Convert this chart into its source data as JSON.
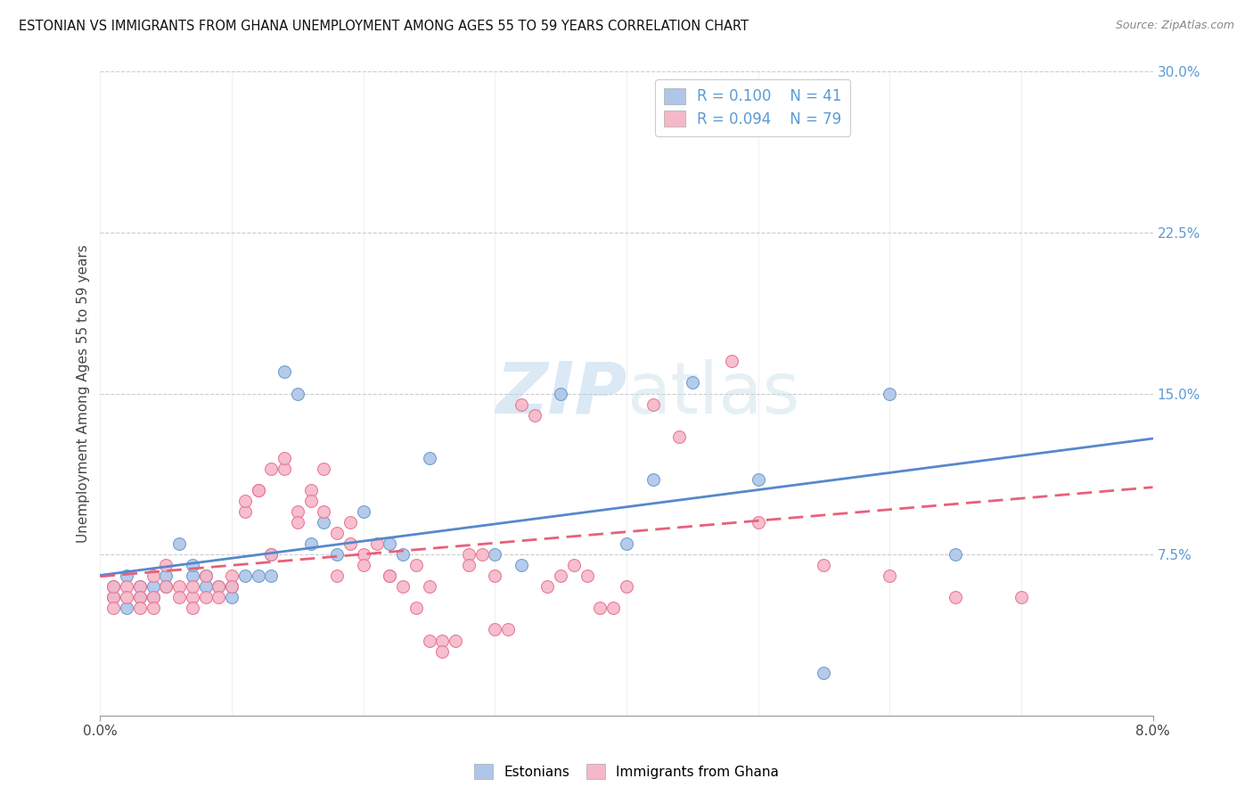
{
  "title": "ESTONIAN VS IMMIGRANTS FROM GHANA UNEMPLOYMENT AMONG AGES 55 TO 59 YEARS CORRELATION CHART",
  "source": "Source: ZipAtlas.com",
  "ylabel": "Unemployment Among Ages 55 to 59 years",
  "legend_label1": "Estonians",
  "legend_label2": "Immigrants from Ghana",
  "R1": 0.1,
  "N1": 41,
  "R2": 0.094,
  "N2": 79,
  "color1": "#aec6e8",
  "color2": "#f5b8c8",
  "edge_color1": "#6699cc",
  "edge_color2": "#e87090",
  "line_color1": "#5588cc",
  "line_color2": "#e8607a",
  "background_color": "#ffffff",
  "tick_color": "#5b9bd5",
  "watermark_color": "#c8dff0",
  "estonians_x": [
    0.001,
    0.001,
    0.002,
    0.002,
    0.003,
    0.003,
    0.004,
    0.004,
    0.005,
    0.005,
    0.006,
    0.007,
    0.007,
    0.008,
    0.008,
    0.009,
    0.01,
    0.01,
    0.011,
    0.012,
    0.013,
    0.013,
    0.014,
    0.015,
    0.016,
    0.017,
    0.018,
    0.02,
    0.022,
    0.023,
    0.025,
    0.03,
    0.032,
    0.035,
    0.04,
    0.042,
    0.045,
    0.05,
    0.055,
    0.06,
    0.065
  ],
  "estonians_y": [
    0.06,
    0.055,
    0.065,
    0.05,
    0.055,
    0.06,
    0.055,
    0.06,
    0.065,
    0.06,
    0.08,
    0.065,
    0.07,
    0.065,
    0.06,
    0.06,
    0.055,
    0.06,
    0.065,
    0.065,
    0.065,
    0.075,
    0.16,
    0.15,
    0.08,
    0.09,
    0.075,
    0.095,
    0.08,
    0.075,
    0.12,
    0.075,
    0.07,
    0.15,
    0.08,
    0.11,
    0.155,
    0.11,
    0.02,
    0.15,
    0.075
  ],
  "ghana_x": [
    0.001,
    0.001,
    0.001,
    0.002,
    0.002,
    0.003,
    0.003,
    0.003,
    0.004,
    0.004,
    0.004,
    0.005,
    0.005,
    0.006,
    0.006,
    0.007,
    0.007,
    0.007,
    0.008,
    0.008,
    0.009,
    0.009,
    0.01,
    0.01,
    0.011,
    0.011,
    0.012,
    0.012,
    0.013,
    0.013,
    0.014,
    0.014,
    0.015,
    0.015,
    0.016,
    0.016,
    0.017,
    0.017,
    0.018,
    0.018,
    0.019,
    0.019,
    0.02,
    0.02,
    0.021,
    0.022,
    0.022,
    0.023,
    0.024,
    0.024,
    0.025,
    0.025,
    0.026,
    0.026,
    0.027,
    0.028,
    0.028,
    0.029,
    0.03,
    0.03,
    0.031,
    0.032,
    0.033,
    0.034,
    0.035,
    0.036,
    0.037,
    0.038,
    0.039,
    0.04,
    0.042,
    0.044,
    0.046,
    0.048,
    0.05,
    0.055,
    0.06,
    0.065,
    0.07
  ],
  "ghana_y": [
    0.055,
    0.06,
    0.05,
    0.06,
    0.055,
    0.06,
    0.055,
    0.05,
    0.065,
    0.055,
    0.05,
    0.07,
    0.06,
    0.06,
    0.055,
    0.055,
    0.06,
    0.05,
    0.065,
    0.055,
    0.06,
    0.055,
    0.065,
    0.06,
    0.095,
    0.1,
    0.105,
    0.105,
    0.115,
    0.075,
    0.115,
    0.12,
    0.095,
    0.09,
    0.105,
    0.1,
    0.095,
    0.115,
    0.085,
    0.065,
    0.09,
    0.08,
    0.075,
    0.07,
    0.08,
    0.065,
    0.065,
    0.06,
    0.07,
    0.05,
    0.06,
    0.035,
    0.035,
    0.03,
    0.035,
    0.075,
    0.07,
    0.075,
    0.065,
    0.04,
    0.04,
    0.145,
    0.14,
    0.06,
    0.065,
    0.07,
    0.065,
    0.05,
    0.05,
    0.06,
    0.145,
    0.13,
    0.28,
    0.165,
    0.09,
    0.07,
    0.065,
    0.055,
    0.055
  ],
  "xlim": [
    0.0,
    0.08
  ],
  "ylim": [
    0.0,
    0.3
  ],
  "y_ticks": [
    0.075,
    0.15,
    0.225,
    0.3
  ],
  "y_tick_labels": [
    "7.5%",
    "15.0%",
    "22.5%",
    "30.0%"
  ],
  "x_ticks": [
    0.0,
    0.08
  ],
  "x_tick_labels": [
    "0.0%",
    "8.0%"
  ]
}
